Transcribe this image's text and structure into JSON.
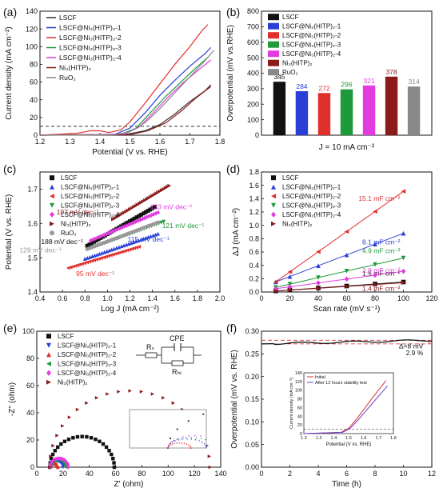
{
  "chart_data": [
    {
      "panel": "(a)",
      "type": "line",
      "xlabel": "Potential (V vs. RHE)",
      "ylabel": "Current density (mA cm⁻²)",
      "xlim": [
        1.2,
        1.8
      ],
      "ylim": [
        0,
        140
      ],
      "xticks": [
        1.2,
        1.3,
        1.4,
        1.5,
        1.6,
        1.7,
        1.8
      ],
      "yticks": [
        0,
        20,
        40,
        60,
        80,
        100,
        120,
        140
      ],
      "reference_line": 10,
      "legend_position": "top-left",
      "series": [
        {
          "name": "LSCF",
          "color": "#333333",
          "points": [
            [
              1.2,
              0
            ],
            [
              1.48,
              0.5
            ],
            [
              1.55,
              5
            ],
            [
              1.6,
              12
            ],
            [
              1.65,
              24
            ],
            [
              1.7,
              38
            ],
            [
              1.75,
              50
            ],
            [
              1.77,
              57
            ]
          ]
        },
        {
          "name": "LSCF@Ni₃(HITP)₂-1",
          "color": "#2b3fd6",
          "points": [
            [
              1.2,
              0
            ],
            [
              1.45,
              1
            ],
            [
              1.5,
              8
            ],
            [
              1.55,
              25
            ],
            [
              1.6,
              45
            ],
            [
              1.65,
              62
            ],
            [
              1.7,
              78
            ],
            [
              1.75,
              92
            ],
            [
              1.77,
              99
            ]
          ]
        },
        {
          "name": "LSCF@Ni₃(HITP)₂-2",
          "color": "#e0302c",
          "points": [
            [
              1.2,
              0
            ],
            [
              1.32,
              2
            ],
            [
              1.37,
              5
            ],
            [
              1.4,
              5
            ],
            [
              1.43,
              3
            ],
            [
              1.47,
              6
            ],
            [
              1.5,
              15
            ],
            [
              1.55,
              36
            ],
            [
              1.6,
              58
            ],
            [
              1.65,
              80
            ],
            [
              1.7,
              100
            ],
            [
              1.74,
              118
            ],
            [
              1.76,
              125
            ]
          ]
        },
        {
          "name": "LSCF@Ni₃(HITP)₂-3",
          "color": "#1f9a3a",
          "points": [
            [
              1.2,
              0
            ],
            [
              1.47,
              1
            ],
            [
              1.52,
              8
            ],
            [
              1.57,
              26
            ],
            [
              1.62,
              44
            ],
            [
              1.67,
              60
            ],
            [
              1.72,
              76
            ],
            [
              1.76,
              88
            ]
          ]
        },
        {
          "name": "LSCF@Ni₃(HITP)₂-4",
          "color": "#e23be0",
          "points": [
            [
              1.2,
              0
            ],
            [
              1.48,
              1
            ],
            [
              1.53,
              9
            ],
            [
              1.58,
              26
            ],
            [
              1.63,
              44
            ],
            [
              1.68,
              60
            ],
            [
              1.73,
              74
            ],
            [
              1.77,
              85
            ]
          ]
        },
        {
          "name": "Ni₃(HITP)₂",
          "color": "#8b1a1a",
          "points": [
            [
              1.2,
              0
            ],
            [
              1.5,
              0.5
            ],
            [
              1.56,
              5
            ],
            [
              1.62,
              14
            ],
            [
              1.67,
              27
            ],
            [
              1.72,
              42
            ],
            [
              1.77,
              55
            ]
          ]
        },
        {
          "name": "RuO₂",
          "color": "#888888",
          "points": [
            [
              1.2,
              0
            ],
            [
              1.45,
              0.5
            ],
            [
              1.5,
              4
            ],
            [
              1.55,
              14
            ],
            [
              1.6,
              30
            ],
            [
              1.65,
              48
            ],
            [
              1.7,
              66
            ],
            [
              1.75,
              84
            ],
            [
              1.78,
              96
            ]
          ]
        }
      ]
    },
    {
      "panel": "(b)",
      "type": "bar",
      "ylabel": "Overpotential (mV vs.RHE)",
      "xlabel": "J = 10 mA cm⁻²",
      "ylim": [
        0,
        800
      ],
      "yticks": [
        0,
        100,
        200,
        300,
        400,
        500,
        600,
        700,
        800
      ],
      "legend_position": "top-left",
      "categories": [
        "LSCF",
        "LSCF@Ni₃(HITP)₂-1",
        "LSCF@Ni₃(HITP)₂-2",
        "LSCF@Ni₃(HITP)₂-3",
        "LSCF@Ni₃(HITP)₂-4",
        "Ni₃(HITP)₂",
        "RuO₂"
      ],
      "values": [
        345,
        284,
        272,
        296,
        321,
        378,
        314
      ],
      "value_labels": [
        "345",
        "284",
        "272",
        "296",
        "321",
        "378",
        "314"
      ],
      "colors": [
        "#111111",
        "#2b3fd6",
        "#e0302c",
        "#1f9a3a",
        "#e23be0",
        "#8b1a1a",
        "#888888"
      ]
    },
    {
      "panel": "(c)",
      "type": "scatter",
      "xlabel": "Log J (mA cm⁻²)",
      "ylabel": "Potential (V vs. RHE)",
      "xlim": [
        0.4,
        2.0
      ],
      "ylim": [
        1.4,
        1.75
      ],
      "xticks": [
        0.4,
        0.6,
        0.8,
        1.0,
        1.2,
        1.4,
        1.6,
        1.8,
        2.0
      ],
      "yticks": [
        1.4,
        1.5,
        1.6,
        1.7
      ],
      "legend_position": "top-left",
      "series": [
        {
          "name": "LSCF",
          "color": "#111111",
          "marker": "square",
          "x0": 0.82,
          "x1": 1.42,
          "y0": 1.535,
          "y1": 1.648,
          "slope_label": "188 mV dec⁻¹"
        },
        {
          "name": "LSCF@Ni₃(HITP)₂-1",
          "color": "#2b3fd6",
          "marker": "triangle",
          "x0": 0.8,
          "x1": 1.45,
          "y0": 1.497,
          "y1": 1.57,
          "slope_label": "115 mV dec⁻¹"
        },
        {
          "name": "LSCF@Ni₃(HITP)₂-2",
          "color": "#e0302c",
          "marker": "triangle-left",
          "x0": 0.65,
          "x1": 1.28,
          "y0": 1.47,
          "y1": 1.532,
          "slope_label": "95 mV dec⁻¹"
        },
        {
          "name": "LSCF@Ni₃(HITP)₂-3",
          "color": "#1f9a3a",
          "marker": "triangle-down",
          "x0": 0.85,
          "x1": 1.5,
          "y0": 1.528,
          "y1": 1.605,
          "slope_label": "121 mV dec⁻¹"
        },
        {
          "name": "LSCF@Ni₃(HITP)₂-4",
          "color": "#e23be0",
          "marker": "diamond",
          "x0": 0.85,
          "x1": 1.45,
          "y0": 1.55,
          "y1": 1.632,
          "slope_label": "133 mV dec⁻¹"
        },
        {
          "name": "Ni₃(HITP)₂",
          "color": "#8b1a1a",
          "marker": "triangle-right",
          "x0": 1.05,
          "x1": 1.55,
          "y0": 1.612,
          "y1": 1.71,
          "slope_label": "197 mV dec⁻¹"
        },
        {
          "name": "RuO₂",
          "color": "#999999",
          "marker": "circle",
          "x0": 0.82,
          "x1": 1.45,
          "y0": 1.525,
          "y1": 1.603,
          "slope_label": "129 mV dec⁻¹"
        }
      ]
    },
    {
      "panel": "(d)",
      "type": "scatter",
      "xlabel": "Scan rate (mV s⁻¹)",
      "ylabel": "ΔJ (mA cm⁻²)",
      "xlim": [
        0,
        120
      ],
      "ylim": [
        0,
        1.8
      ],
      "xticks": [
        0,
        20,
        40,
        60,
        80,
        100,
        120
      ],
      "yticks": [
        0.0,
        0.2,
        0.4,
        0.6,
        0.8,
        1.0,
        1.2,
        1.4,
        1.6,
        1.8
      ],
      "scan_rates": [
        10,
        20,
        40,
        60,
        80,
        100
      ],
      "legend_position": "top-left",
      "series": [
        {
          "name": "LSCF",
          "color": "#111111",
          "marker": "square",
          "slope_mF": 1.5,
          "intercept": 0.0,
          "label": "1.5 mF cm⁻²"
        },
        {
          "name": "LSCF@Ni₃(HITP)₂-1",
          "color": "#2b3fd6",
          "marker": "triangle",
          "slope_mF": 8.1,
          "intercept": 0.07,
          "label": "8.1 mF cm⁻²"
        },
        {
          "name": "LSCF@Ni₃(HITP)₂-2",
          "color": "#e0302c",
          "marker": "triangle-left",
          "slope_mF": 15.1,
          "intercept": 0.0,
          "label": "15.1 mF cm⁻²"
        },
        {
          "name": "LSCF@Ni₃(HITP)₂-3",
          "color": "#1f9a3a",
          "marker": "triangle-down",
          "slope_mF": 4.9,
          "intercept": 0.02,
          "label": "4.9 mF cm⁻²"
        },
        {
          "name": "LSCF@Ni₃(HITP)₂-4",
          "color": "#e23be0",
          "marker": "diamond",
          "slope_mF": 2.9,
          "intercept": 0.02,
          "label": "2.9 mF cm⁻²"
        },
        {
          "name": "Ni₃(HITP)₂",
          "color": "#8b1a1a",
          "marker": "triangle-right",
          "slope_mF": 1.4,
          "intercept": 0.0,
          "label": "1.4 mF cm⁻²"
        }
      ]
    },
    {
      "panel": "(e)",
      "type": "scatter",
      "xlabel": "Z' (ohm)",
      "ylabel": "-Z'' (ohm)",
      "xlim": [
        0,
        140
      ],
      "ylim": [
        0,
        100
      ],
      "xticks": [
        0,
        20,
        40,
        60,
        80,
        100,
        120,
        140
      ],
      "yticks": [
        0,
        20,
        40,
        60,
        80,
        100
      ],
      "circuit_labels": [
        "Rₛ",
        "CPE",
        "Rₕₜ"
      ],
      "legend_position": "top-left",
      "series": [
        {
          "name": "LSCF",
          "color": "#111111",
          "marker": "square",
          "r0": 10,
          "rct": 49
        },
        {
          "name": "LSCF@Ni₃(HITP)₂-1",
          "color": "#2b3fd6",
          "marker": "triangle-down",
          "r0": 10,
          "rct": 10
        },
        {
          "name": "LSCF@Ni₃(HITP)₂-2",
          "color": "#e0302c",
          "marker": "triangle",
          "r0": 10,
          "rct": 6
        },
        {
          "name": "LSCF@Ni₃(HITP)₂-3",
          "color": "#1f9a3a",
          "marker": "triangle-left",
          "r0": 10,
          "rct": 12
        },
        {
          "name": "LSCF@Ni₃(HITP)₂-4",
          "color": "#e23be0",
          "marker": "diamond",
          "r0": 10,
          "rct": 14
        },
        {
          "name": "Ni₃(HITP)₂",
          "color": "#8b1a1a",
          "marker": "triangle-right",
          "r0": 10,
          "rct": 122
        }
      ],
      "inset": {
        "xlim": [
          0,
          20
        ],
        "ylim": [
          0,
          20
        ]
      }
    },
    {
      "panel": "(f)",
      "type": "line",
      "xlabel": "Time (h)",
      "ylabel": "Overpotential (mV vs. RHE)",
      "xlim": [
        0,
        12
      ],
      "ylim": [
        0.0,
        0.3
      ],
      "xticks": [
        0,
        2,
        4,
        6,
        8,
        10,
        12
      ],
      "yticks": [
        0.0,
        0.05,
        0.1,
        0.15,
        0.2,
        0.25,
        0.3
      ],
      "start_value": 0.272,
      "end_value": 0.28,
      "annotation_delta": "Δ=8 mV",
      "annotation_percent": "2.9 %",
      "inset": {
        "xlabel": "Potential (V vs. RHE)",
        "ylabel": "Current density (mA cm⁻²)",
        "xlim": [
          1.2,
          1.8
        ],
        "ylim": [
          0,
          140
        ],
        "xticks": [
          1.2,
          1.3,
          1.4,
          1.5,
          1.6,
          1.7,
          1.8
        ],
        "yticks": [
          0,
          20,
          40,
          60,
          80,
          100,
          120,
          140
        ],
        "legend": [
          "Initial",
          "After 12 hours stability test"
        ],
        "series": [
          {
            "name": "Initial",
            "color": "#e0302c",
            "points": [
              [
                1.2,
                0
              ],
              [
                1.45,
                3
              ],
              [
                1.5,
                12
              ],
              [
                1.55,
                32
              ],
              [
                1.6,
                55
              ],
              [
                1.65,
                78
              ],
              [
                1.7,
                100
              ],
              [
                1.75,
                122
              ]
            ]
          },
          {
            "name": "After 12 hours stability test",
            "color": "#6a3fd6",
            "points": [
              [
                1.2,
                0
              ],
              [
                1.46,
                3
              ],
              [
                1.51,
                12
              ],
              [
                1.56,
                30
              ],
              [
                1.61,
                50
              ],
              [
                1.66,
                70
              ],
              [
                1.71,
                90
              ],
              [
                1.76,
                110
              ]
            ]
          }
        ]
      }
    }
  ]
}
